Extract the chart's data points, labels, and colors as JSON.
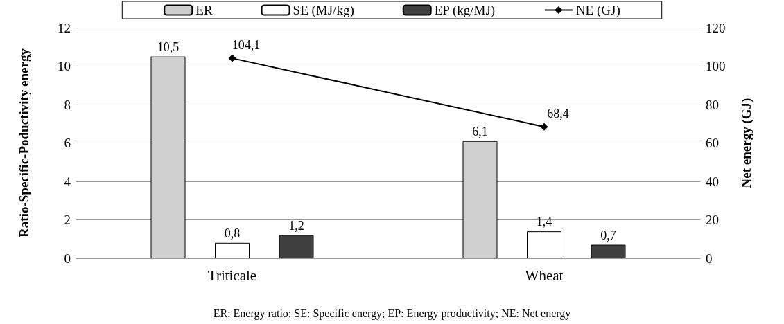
{
  "chart_data": {
    "type": "bar",
    "categories": [
      "Triticale",
      "Wheat"
    ],
    "series": [
      {
        "name": "ER",
        "color": "#d0d0d0",
        "values": [
          10.5,
          6.1
        ],
        "value_labels": [
          "10,5",
          "6,1"
        ]
      },
      {
        "name": "SE (MJ/kg)",
        "color": "#ffffff",
        "values": [
          0.8,
          1.4
        ],
        "value_labels": [
          "0,8",
          "1,4"
        ]
      },
      {
        "name": "EP (kg/MJ)",
        "color": "#404040",
        "values": [
          1.2,
          0.7
        ],
        "value_labels": [
          "1,2",
          "0,7"
        ]
      },
      {
        "name": "NE (GJ)",
        "type": "line",
        "axis": "y2",
        "color": "#000000",
        "values": [
          104.1,
          68.4
        ],
        "value_labels": [
          "104,1",
          "68,4"
        ]
      }
    ],
    "ylabel": "Ratio-Specific-Poductivity energy",
    "y2label": "Net energy (GJ)",
    "ylim": [
      0,
      12
    ],
    "yticks": [
      0,
      2,
      4,
      6,
      8,
      10,
      12
    ],
    "y2lim": [
      0,
      120
    ],
    "y2ticks": [
      0,
      20,
      40,
      60,
      80,
      100,
      120
    ],
    "grid": "y",
    "legend": "top",
    "marker": "diamond",
    "line_style": "solid",
    "annotations": [
      "ER: Energy ratio; SE: Specific energy; EP: Energy productivity; NE: Net energy"
    ]
  }
}
